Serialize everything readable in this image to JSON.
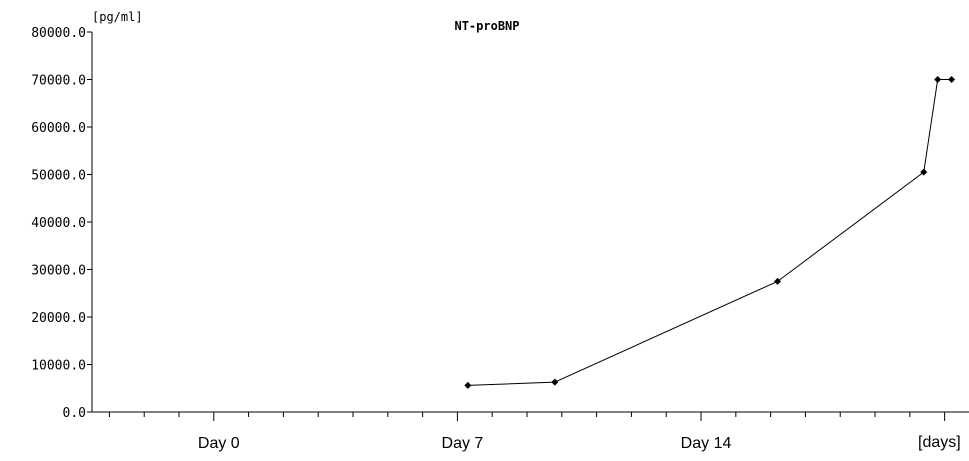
{
  "chart_data": {
    "type": "line",
    "title": "NT-proBNP",
    "y_unit": "[pg/ml]",
    "x_unit": "[days]",
    "ylim": [
      0,
      80000
    ],
    "y_ticks": [
      "0.0",
      "10000.0",
      "20000.0",
      "30000.0",
      "40000.0",
      "50000.0",
      "60000.0",
      "70000.0",
      "80000.0"
    ],
    "xlim": [
      -3.5,
      21.7
    ],
    "x_labels": [
      {
        "text": "Day 0",
        "x": 0
      },
      {
        "text": "Day 7",
        "x": 7
      },
      {
        "text": "Day 14",
        "x": 14
      }
    ],
    "grid": false,
    "series": [
      {
        "x": [
          7.3,
          9.8,
          16.2,
          20.4,
          20.8,
          21.2
        ],
        "y": [
          5600,
          6300,
          27500,
          50500,
          70000,
          70000
        ]
      }
    ]
  }
}
